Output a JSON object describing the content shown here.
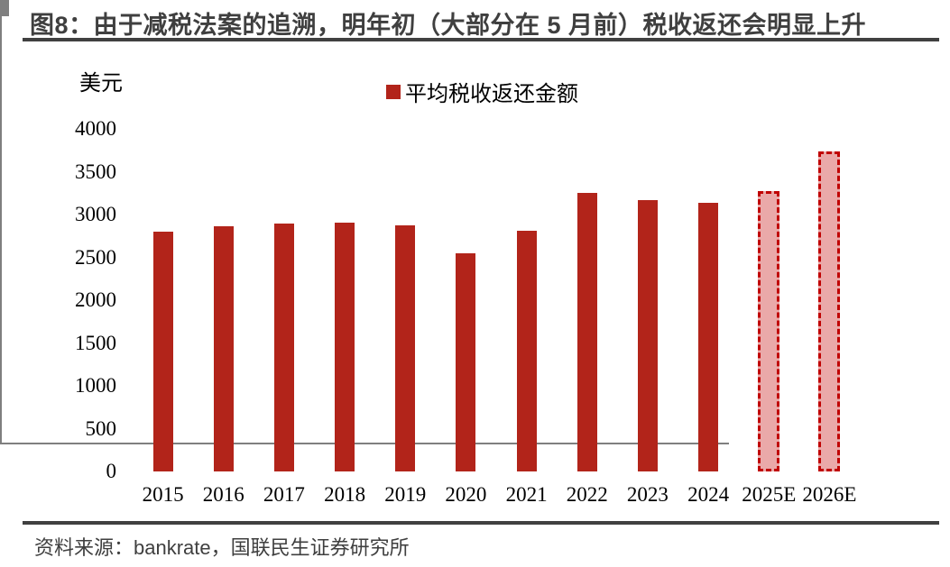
{
  "figure": {
    "title": "图8：由于减税法案的追溯，明年初（大部分在 5 月前）税收返还会明显上升",
    "y_unit_label": "美元",
    "legend_label": "平均税收返还金额",
    "source": "资料来源：bankrate，国联民生证券研究所"
  },
  "colors": {
    "bar_solid": "#B2241A",
    "bar_forecast_fill": "#EAA9A9",
    "bar_forecast_border": "#C00000",
    "axis": "#7F7F7F",
    "rule": "#404040",
    "title_text": "#3F3F3F",
    "tick_text": "#000000"
  },
  "chart_data": {
    "type": "bar",
    "title": "平均税收返还金额",
    "xlabel": "",
    "ylabel": "美元",
    "categories": [
      "2015",
      "2016",
      "2017",
      "2018",
      "2019",
      "2020",
      "2021",
      "2022",
      "2023",
      "2024",
      "2025E",
      "2026E"
    ],
    "values": [
      2800,
      2860,
      2895,
      2910,
      2870,
      2550,
      2815,
      3250,
      3165,
      3140,
      3270,
      3740
    ],
    "forecast_flags": [
      false,
      false,
      false,
      false,
      false,
      false,
      false,
      false,
      false,
      false,
      true,
      true
    ],
    "ylim": [
      0,
      4000
    ],
    "y_ticks": [
      0,
      500,
      1000,
      1500,
      2000,
      2500,
      3000,
      3500,
      4000
    ],
    "grid": false,
    "legend_position": "top-center",
    "series_name": "平均税收返还金额"
  }
}
